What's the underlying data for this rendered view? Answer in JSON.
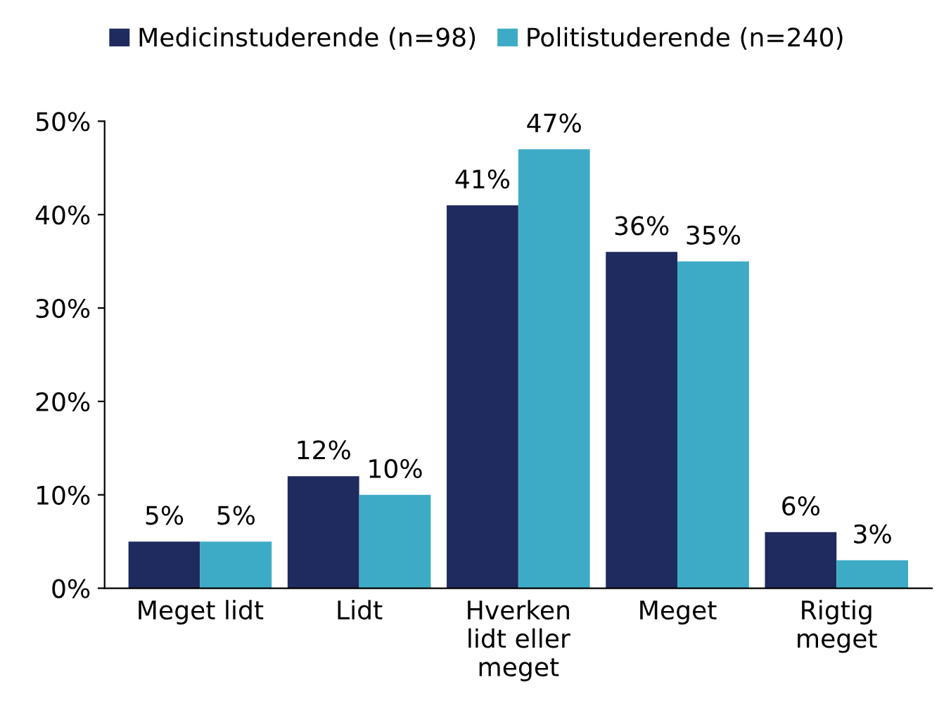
{
  "chart_data": {
    "type": "bar",
    "categories": [
      "Meget lidt",
      "Lidt",
      "Hverken\nlidt eller\nmeget",
      "Meget",
      "Rigtig\nmeget"
    ],
    "series": [
      {
        "name": "Medicinstuderende (n=98)",
        "color": "#1f2a5e",
        "values": [
          5,
          12,
          41,
          36,
          6
        ],
        "value_labels": [
          "5%",
          "12%",
          "41%",
          "36%",
          "6%"
        ]
      },
      {
        "name": "Politistuderende (n=240)",
        "color": "#3eabc6",
        "values": [
          5,
          10,
          47,
          35,
          3
        ],
        "value_labels": [
          "5%",
          "10%",
          "47%",
          "35%",
          "3%"
        ]
      }
    ],
    "ylim": [
      0,
      50
    ],
    "yticks": [
      {
        "value": 0,
        "label": "0%"
      },
      {
        "value": 10,
        "label": "10%"
      },
      {
        "value": 20,
        "label": "20%"
      },
      {
        "value": 30,
        "label": "30%"
      },
      {
        "value": 40,
        "label": "40%"
      },
      {
        "value": 50,
        "label": "50%"
      }
    ],
    "grid": false,
    "legend": "top"
  }
}
